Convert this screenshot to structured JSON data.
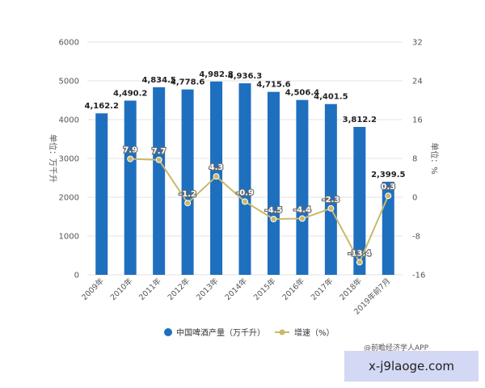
{
  "chart_data": {
    "type": "bar",
    "categories": [
      "2009年",
      "2010年",
      "2011年",
      "2012年",
      "2013年",
      "2014年",
      "2015年",
      "2016年",
      "2017年",
      "2018年",
      "2019年前7月"
    ],
    "series": [
      {
        "name": "中国啤酒产量（万千升）",
        "type": "bar",
        "axis": "left",
        "color": "#1f6fbf",
        "values": [
          4162.2,
          4490.2,
          4834.5,
          4778.6,
          4982.8,
          4936.3,
          4715.6,
          4506.4,
          4401.5,
          3812.2,
          2399.5
        ],
        "labels": [
          "4,162.2",
          "4,490.2",
          "4,834.5",
          "4,778.6",
          "4,982.8",
          "4,936.3",
          "4,715.6",
          "4,506.4",
          "4,401.5",
          "3,812.2",
          "2,399.5"
        ]
      },
      {
        "name": "增速（%）",
        "type": "line",
        "axis": "right",
        "color": "#c9b96a",
        "values": [
          null,
          7.9,
          7.7,
          -1.2,
          4.3,
          -0.9,
          -4.5,
          -4.4,
          -2.3,
          -13.4,
          0.3
        ],
        "labels": [
          "",
          "7.9",
          "7.7",
          "-1.2",
          "4.3",
          "-0.9",
          "-4.5",
          "-4.4",
          "-2.3",
          "-13.4",
          "0.3"
        ]
      }
    ],
    "ylabel": "单位：万千升",
    "y2label": "单位：%",
    "ylim": [
      0,
      6000
    ],
    "yticks": [
      0,
      1000,
      2000,
      3000,
      4000,
      5000,
      6000
    ],
    "ytick_labels": [
      "0",
      "1000",
      "2000",
      "3000",
      "4000",
      "5000",
      "6000"
    ],
    "y2lim": [
      -16,
      32
    ],
    "y2ticks": [
      -16,
      -8,
      0,
      8,
      16,
      24,
      32
    ],
    "y2tick_labels": [
      "-16",
      "-8",
      "0",
      "8",
      "16",
      "24",
      "32"
    ],
    "grid": true,
    "legend_position": "bottom"
  },
  "source": "@前瞻经济学人APP",
  "watermark": "x-j9laoge.com"
}
